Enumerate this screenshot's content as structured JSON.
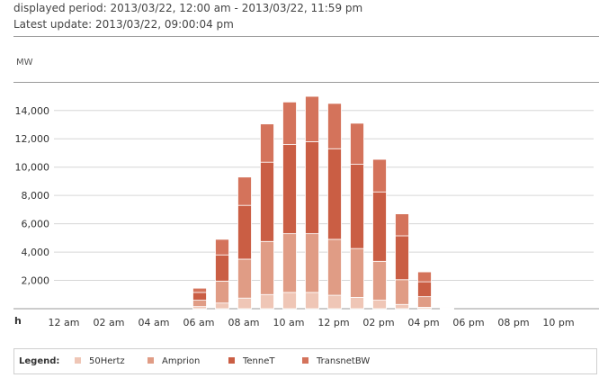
{
  "header": {
    "period": "displayed period: 2013/03/22, 12:00 am - 2013/03/22, 11:59 pm",
    "update": "Latest update: 2013/03/22, 09:00:04 pm"
  },
  "colors": {
    "50Hertz": "#efc6b6",
    "Amprion": "#e09c85",
    "TenneT": "#ca5e44",
    "TransnetBW": "#d4735b",
    "grid": "#d6d6d6",
    "axis": "#9a9a9a"
  },
  "legend": {
    "title": "Legend:",
    "items": [
      "50Hertz",
      "Amprion",
      "TenneT",
      "TransnetBW"
    ]
  },
  "chart_data": {
    "type": "bar",
    "stacked": true,
    "ylabel": "MW",
    "xlabel": "h",
    "ylim": [
      0,
      15000
    ],
    "yticks": [
      "2,000",
      "4,000",
      "6,000",
      "8,000",
      "10,000",
      "12,000",
      "14,000"
    ],
    "ytick_values": [
      2000,
      4000,
      6000,
      8000,
      10000,
      12000,
      14000
    ],
    "xticks": [
      "12 am",
      "02 am",
      "04 am",
      "06 am",
      "08 am",
      "10 am",
      "12 pm",
      "02 pm",
      "04 pm",
      "06 pm",
      "08 pm",
      "10 pm"
    ],
    "hours": [
      0,
      1,
      2,
      3,
      4,
      5,
      6,
      7,
      8,
      9,
      10,
      11,
      12,
      13,
      14,
      15,
      16,
      17,
      18,
      19,
      20,
      21,
      22,
      23
    ],
    "grid": true,
    "legend_position": "bottom",
    "series": [
      {
        "name": "50Hertz",
        "values": [
          0,
          0,
          0,
          0,
          0,
          0,
          0,
          150,
          400,
          750,
          1000,
          1150,
          1150,
          950,
          800,
          600,
          300,
          100,
          20,
          0,
          0,
          0,
          0,
          0
        ]
      },
      {
        "name": "Amprion",
        "values": [
          0,
          0,
          0,
          0,
          0,
          0,
          0,
          450,
          1550,
          2750,
          3750,
          4150,
          4150,
          3950,
          3450,
          2750,
          1750,
          750,
          30,
          0,
          0,
          0,
          0,
          0
        ]
      },
      {
        "name": "TenneT",
        "values": [
          0,
          0,
          0,
          0,
          0,
          0,
          0,
          550,
          1850,
          3800,
          5600,
          6300,
          6500,
          6400,
          5950,
          4900,
          3100,
          1050,
          40,
          0,
          0,
          0,
          0,
          0
        ]
      },
      {
        "name": "TransnetBW",
        "values": [
          0,
          0,
          0,
          0,
          0,
          0,
          0,
          300,
          1100,
          2000,
          2700,
          3000,
          3200,
          3200,
          2900,
          2300,
          1550,
          700,
          10,
          0,
          0,
          0,
          0,
          0
        ]
      }
    ]
  }
}
